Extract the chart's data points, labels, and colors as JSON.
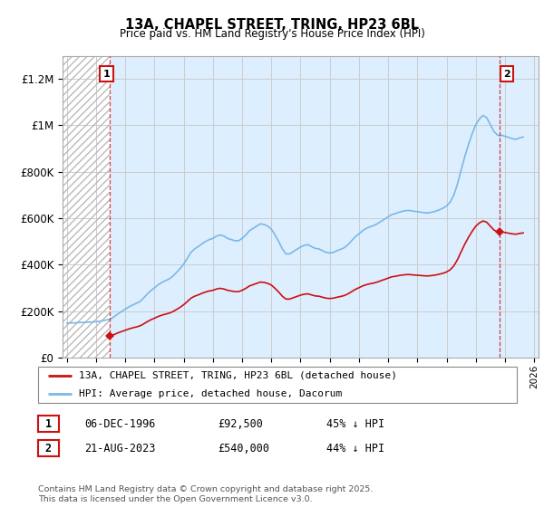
{
  "title": "13A, CHAPEL STREET, TRING, HP23 6BL",
  "subtitle": "Price paid vs. HM Land Registry's House Price Index (HPI)",
  "ylim": [
    0,
    1300000
  ],
  "xlim_start": 1993.7,
  "xlim_end": 2026.3,
  "yticks": [
    0,
    200000,
    400000,
    600000,
    800000,
    1000000,
    1200000
  ],
  "ytick_labels": [
    "£0",
    "£200K",
    "£400K",
    "£600K",
    "£800K",
    "£1M",
    "£1.2M"
  ],
  "sale1_x": 1996.92,
  "sale1_y": 92500,
  "sale2_x": 2023.64,
  "sale2_y": 540000,
  "hpi_color": "#7ab8e8",
  "hpi_bg_color": "#ddeeff",
  "price_color": "#cc1111",
  "bg_color": "#ffffff",
  "legend_line1": "13A, CHAPEL STREET, TRING, HP23 6BL (detached house)",
  "legend_line2": "HPI: Average price, detached house, Dacorum",
  "table_row1": [
    "1",
    "06-DEC-1996",
    "£92,500",
    "45% ↓ HPI"
  ],
  "table_row2": [
    "2",
    "21-AUG-2023",
    "£540,000",
    "44% ↓ HPI"
  ],
  "footer": "Contains HM Land Registry data © Crown copyright and database right 2025.\nThis data is licensed under the Open Government Licence v3.0.",
  "hpi_data_x": [
    1994.0,
    1994.25,
    1994.5,
    1994.75,
    1995.0,
    1995.25,
    1995.5,
    1995.75,
    1996.0,
    1996.25,
    1996.5,
    1996.75,
    1996.92,
    1997.0,
    1997.25,
    1997.5,
    1997.75,
    1998.0,
    1998.25,
    1998.5,
    1998.75,
    1999.0,
    1999.25,
    1999.5,
    1999.75,
    2000.0,
    2000.25,
    2000.5,
    2000.75,
    2001.0,
    2001.25,
    2001.5,
    2001.75,
    2002.0,
    2002.25,
    2002.5,
    2002.75,
    2003.0,
    2003.25,
    2003.5,
    2003.75,
    2004.0,
    2004.25,
    2004.5,
    2004.75,
    2005.0,
    2005.25,
    2005.5,
    2005.75,
    2006.0,
    2006.25,
    2006.5,
    2006.75,
    2007.0,
    2007.25,
    2007.5,
    2007.75,
    2008.0,
    2008.25,
    2008.5,
    2008.75,
    2009.0,
    2009.25,
    2009.5,
    2009.75,
    2010.0,
    2010.25,
    2010.5,
    2010.75,
    2011.0,
    2011.25,
    2011.5,
    2011.75,
    2012.0,
    2012.25,
    2012.5,
    2012.75,
    2013.0,
    2013.25,
    2013.5,
    2013.75,
    2014.0,
    2014.25,
    2014.5,
    2014.75,
    2015.0,
    2015.25,
    2015.5,
    2015.75,
    2016.0,
    2016.25,
    2016.5,
    2016.75,
    2017.0,
    2017.25,
    2017.5,
    2017.75,
    2018.0,
    2018.25,
    2018.5,
    2018.75,
    2019.0,
    2019.25,
    2019.5,
    2019.75,
    2020.0,
    2020.25,
    2020.5,
    2020.75,
    2021.0,
    2021.25,
    2021.5,
    2021.75,
    2022.0,
    2022.25,
    2022.5,
    2022.75,
    2023.0,
    2023.25,
    2023.5,
    2023.64,
    2023.75,
    2024.0,
    2024.25,
    2024.5,
    2024.75,
    2025.0,
    2025.25
  ],
  "hpi_data_y": [
    148000,
    148500,
    149000,
    150000,
    151000,
    151500,
    152000,
    153000,
    154000,
    156000,
    159000,
    162000,
    164000,
    166000,
    176000,
    188000,
    198000,
    208000,
    218000,
    226000,
    233000,
    241000,
    256000,
    273000,
    288000,
    300000,
    313000,
    323000,
    331000,
    338000,
    350000,
    366000,
    383000,
    403000,
    428000,
    453000,
    468000,
    478000,
    490000,
    500000,
    508000,
    513000,
    523000,
    528000,
    523000,
    513000,
    508000,
    503000,
    503000,
    513000,
    528000,
    546000,
    556000,
    566000,
    576000,
    573000,
    566000,
    553000,
    528000,
    500000,
    468000,
    446000,
    446000,
    456000,
    466000,
    476000,
    483000,
    486000,
    478000,
    470000,
    468000,
    460000,
    453000,
    450000,
    453000,
    460000,
    466000,
    473000,
    486000,
    503000,
    520000,
    533000,
    546000,
    556000,
    563000,
    568000,
    576000,
    586000,
    596000,
    606000,
    616000,
    620000,
    626000,
    630000,
    633000,
    633000,
    630000,
    628000,
    626000,
    623000,
    623000,
    626000,
    630000,
    636000,
    643000,
    653000,
    670000,
    700000,
    748000,
    808000,
    866000,
    918000,
    963000,
    1003000,
    1028000,
    1043000,
    1033000,
    1003000,
    973000,
    958000,
    956000,
    958000,
    953000,
    948000,
    943000,
    940000,
    946000,
    950000
  ]
}
